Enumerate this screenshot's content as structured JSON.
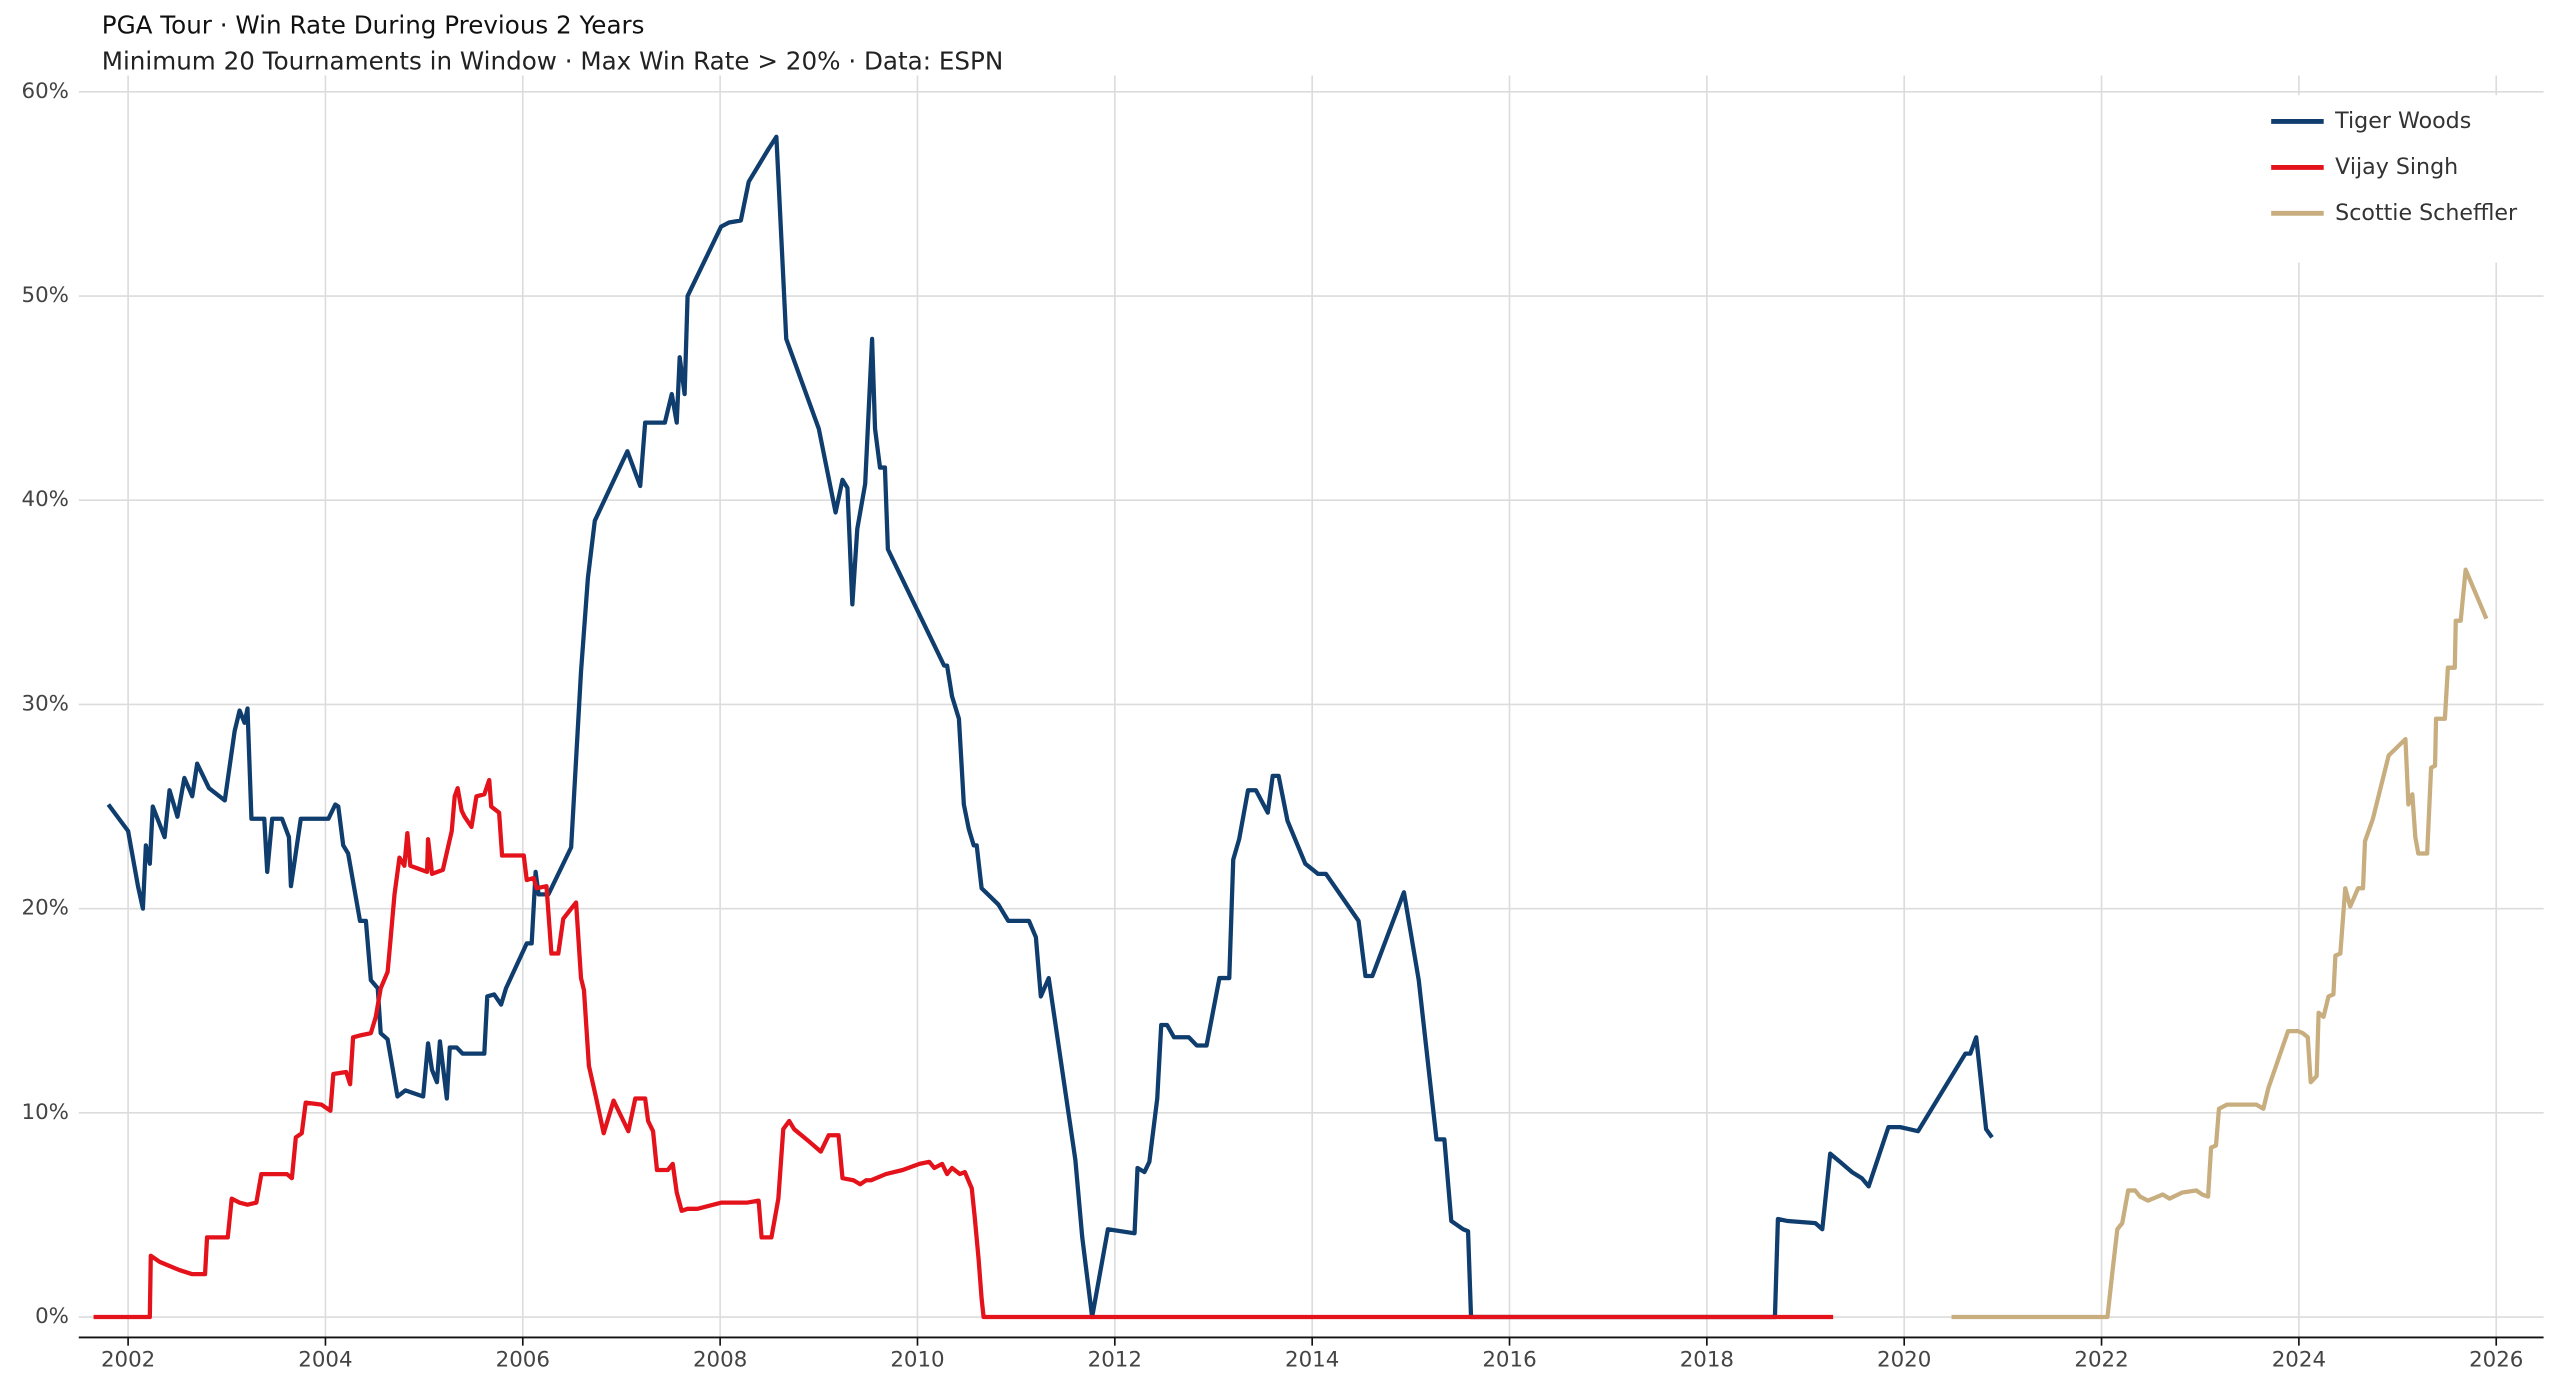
{
  "chart_data": {
    "type": "line",
    "title": "PGA Tour  ·  Win Rate During Previous 2 Years",
    "subtitle": "Minimum 20 Tournaments in Window  ·  Max Win Rate > 20%  ·  Data: ESPN",
    "xlim": [
      2001.5,
      2026.48
    ],
    "xticks": [
      2002,
      2004,
      2006,
      2008,
      2010,
      2012,
      2014,
      2016,
      2018,
      2020,
      2022,
      2024,
      2026
    ],
    "ylim": [
      -1,
      60.8
    ],
    "yticks": [
      {
        "value": 0,
        "label": "0%"
      },
      {
        "value": 10,
        "label": "10%"
      },
      {
        "value": 20,
        "label": "20%"
      },
      {
        "value": 30,
        "label": "30%"
      },
      {
        "value": 40,
        "label": "40%"
      },
      {
        "value": 50,
        "label": "50%"
      },
      {
        "value": 60,
        "label": "60%"
      }
    ],
    "grid": true,
    "legend": "top-right",
    "series": [
      {
        "name": "Tiger Woods",
        "color": "#0f3d6e",
        "x": [
          2001.8,
          2002.0,
          2002.1,
          2002.15,
          2002.18,
          2002.22,
          2002.25,
          2002.37,
          2002.42,
          2002.5,
          2002.57,
          2002.65,
          2002.7,
          2002.82,
          2002.98,
          2003.08,
          2003.13,
          2003.18,
          2003.21,
          2003.25,
          2003.38,
          2003.41,
          2003.46,
          2003.56,
          2003.63,
          2003.65,
          2003.75,
          2004.03,
          2004.1,
          2004.13,
          2004.18,
          2004.23,
          2004.35,
          2004.41,
          2004.46,
          2004.53,
          2004.56,
          2004.63,
          2004.73,
          2004.81,
          2004.99,
          2005.04,
          2005.08,
          2005.13,
          2005.16,
          2005.23,
          2005.26,
          2005.33,
          2005.39,
          2005.61,
          2005.64,
          2005.71,
          2005.78,
          2005.83,
          2006.04,
          2006.09,
          2006.13,
          2006.16,
          2006.26,
          2006.49,
          2006.59,
          2006.66,
          2006.73,
          2007.06,
          2007.19,
          2007.24,
          2007.44,
          2007.51,
          2007.56,
          2007.59,
          2007.64,
          2007.67,
          2008.01,
          2008.09,
          2008.21,
          2008.29,
          2008.39,
          2008.49,
          2008.57,
          2008.67,
          2009.0,
          2009.17,
          2009.24,
          2009.29,
          2009.34,
          2009.39,
          2009.47,
          2009.54,
          2009.57,
          2009.62,
          2009.67,
          2009.7,
          2010.27,
          2010.3,
          2010.35,
          2010.42,
          2010.47,
          2010.52,
          2010.57,
          2010.6,
          2010.65,
          2010.82,
          2010.92,
          2011.13,
          2011.2,
          2011.25,
          2011.33,
          2011.6,
          2011.67,
          2011.77,
          2011.93,
          2012.2,
          2012.23,
          2012.3,
          2012.35,
          2012.43,
          2012.47,
          2012.53,
          2012.6,
          2012.75,
          2012.83,
          2012.93,
          2013.06,
          2013.16,
          2013.2,
          2013.26,
          2013.35,
          2013.43,
          2013.55,
          2013.6,
          2013.66,
          2013.75,
          2013.93,
          2014.06,
          2014.14,
          2014.47,
          2014.54,
          2014.61,
          2014.93,
          2015.08,
          2015.26,
          2015.34,
          2015.41,
          2015.53,
          2015.58,
          2015.61,
          2018.69,
          2018.72,
          2018.82,
          2019.1,
          2019.17,
          2019.25,
          2019.35,
          2019.47,
          2019.57,
          2019.64,
          2019.84,
          2019.96,
          2020.14,
          2020.62,
          2020.67,
          2020.73,
          2020.83,
          2020.89
        ],
        "values": [
          25.1,
          23.8,
          21.1,
          20.0,
          23.1,
          22.2,
          25.0,
          23.5,
          25.8,
          24.5,
          26.4,
          25.5,
          27.1,
          25.9,
          25.3,
          28.7,
          29.7,
          29.1,
          29.8,
          24.4,
          24.4,
          21.8,
          24.4,
          24.4,
          23.5,
          21.1,
          24.4,
          24.4,
          25.1,
          25.0,
          23.1,
          22.7,
          19.4,
          19.4,
          16.5,
          16.1,
          13.9,
          13.6,
          10.8,
          11.1,
          10.8,
          13.4,
          12.1,
          11.5,
          13.5,
          10.7,
          13.2,
          13.2,
          12.9,
          12.9,
          15.7,
          15.8,
          15.3,
          16.1,
          18.3,
          18.3,
          21.8,
          20.7,
          20.7,
          23.0,
          31.6,
          36.2,
          39.0,
          42.4,
          40.7,
          43.8,
          43.8,
          45.2,
          43.8,
          47.0,
          45.2,
          50.0,
          53.4,
          53.6,
          53.7,
          55.6,
          56.4,
          57.2,
          57.8,
          47.9,
          43.5,
          39.4,
          41.0,
          40.6,
          34.9,
          38.6,
          40.8,
          47.9,
          43.5,
          41.6,
          41.6,
          37.6,
          31.9,
          31.9,
          30.4,
          29.3,
          25.1,
          23.9,
          23.1,
          23.1,
          21.0,
          20.2,
          19.4,
          19.4,
          18.6,
          15.7,
          16.6,
          7.7,
          3.9,
          0,
          4.3,
          4.1,
          7.3,
          7.1,
          7.6,
          10.7,
          14.3,
          14.3,
          13.7,
          13.7,
          13.3,
          13.3,
          16.6,
          16.6,
          22.4,
          23.4,
          25.8,
          25.8,
          24.7,
          26.5,
          26.5,
          24.3,
          22.2,
          21.7,
          21.7,
          19.4,
          16.7,
          16.7,
          20.8,
          16.5,
          8.7,
          8.7,
          4.7,
          4.3,
          4.2,
          0,
          0,
          4.8,
          4.7,
          4.6,
          4.3,
          8.0,
          7.6,
          7.1,
          6.8,
          6.4,
          9.3,
          9.3,
          9.1,
          12.9,
          12.9,
          13.7,
          9.2,
          8.8
        ]
      },
      {
        "name": "Vijay Singh",
        "color": "#e3121b",
        "x": [
          2001.65,
          2002.22,
          2002.23,
          2002.32,
          2002.42,
          2002.52,
          2002.65,
          2002.78,
          2002.8,
          2003.01,
          2003.05,
          2003.13,
          2003.21,
          2003.3,
          2003.35,
          2003.61,
          2003.66,
          2003.7,
          2003.76,
          2003.8,
          2003.96,
          2004.05,
          2004.08,
          2004.21,
          2004.25,
          2004.28,
          2004.36,
          2004.46,
          2004.51,
          2004.56,
          2004.63,
          2004.66,
          2004.7,
          2004.75,
          2004.8,
          2004.83,
          2004.86,
          2005.03,
          2005.04,
          2005.08,
          2005.19,
          2005.28,
          2005.31,
          2005.34,
          2005.38,
          2005.41,
          2005.48,
          2005.53,
          2005.61,
          2005.66,
          2005.68,
          2005.76,
          2005.79,
          2006.01,
          2006.04,
          2006.11,
          2006.14,
          2006.24,
          2006.29,
          2006.36,
          2006.41,
          2006.49,
          2006.54,
          2006.59,
          2006.62,
          2006.67,
          2006.74,
          2006.82,
          2006.92,
          2006.99,
          2007.07,
          2007.14,
          2007.24,
          2007.27,
          2007.32,
          2007.36,
          2007.47,
          2007.52,
          2007.56,
          2007.61,
          2007.67,
          2007.77,
          2008.01,
          2008.27,
          2008.39,
          2008.42,
          2008.52,
          2008.59,
          2008.64,
          2008.7,
          2008.75,
          2008.9,
          2009.02,
          2009.1,
          2009.2,
          2009.24,
          2009.35,
          2009.42,
          2009.48,
          2009.53,
          2009.68,
          2009.85,
          2010.02,
          2010.12,
          2010.17,
          2010.25,
          2010.3,
          2010.35,
          2010.43,
          2010.48,
          2010.55,
          2010.58,
          2010.62,
          2010.65,
          2010.67,
          2019.28
        ],
        "values": [
          0,
          0,
          3.0,
          2.7,
          2.5,
          2.3,
          2.1,
          2.1,
          3.9,
          3.9,
          5.8,
          5.6,
          5.5,
          5.6,
          7.0,
          7.0,
          6.8,
          8.8,
          9.0,
          10.5,
          10.4,
          10.1,
          11.9,
          12.0,
          11.4,
          13.7,
          13.8,
          13.9,
          14.7,
          16.1,
          16.9,
          18.5,
          20.7,
          22.5,
          22.1,
          23.7,
          22.1,
          21.8,
          23.4,
          21.7,
          21.9,
          23.8,
          25.5,
          25.9,
          24.8,
          24.5,
          24.0,
          25.5,
          25.6,
          26.3,
          25.0,
          24.7,
          22.6,
          22.6,
          21.4,
          21.5,
          21.0,
          21.1,
          17.8,
          17.8,
          19.5,
          20.0,
          20.3,
          16.6,
          16.0,
          12.3,
          10.8,
          9.0,
          10.6,
          9.9,
          9.1,
          10.7,
          10.7,
          9.6,
          9.1,
          7.2,
          7.2,
          7.5,
          6.1,
          5.2,
          5.3,
          5.3,
          5.6,
          5.6,
          5.7,
          3.9,
          3.9,
          5.8,
          9.2,
          9.6,
          9.2,
          8.6,
          8.1,
          8.9,
          8.9,
          6.8,
          6.7,
          6.5,
          6.7,
          6.7,
          7.0,
          7.2,
          7.5,
          7.6,
          7.3,
          7.5,
          7.0,
          7.3,
          7.0,
          7.1,
          6.3,
          4.9,
          2.8,
          0.9,
          0,
          0
        ]
      },
      {
        "name": "Scottie Scheffler",
        "color": "#c8ad7f",
        "x": [
          2020.48,
          2022.06,
          2022.11,
          2022.16,
          2022.21,
          2022.27,
          2022.34,
          2022.39,
          2022.47,
          2022.57,
          2022.62,
          2022.69,
          2022.82,
          2022.96,
          2023.02,
          2023.08,
          2023.11,
          2023.16,
          2023.19,
          2023.27,
          2023.57,
          2023.64,
          2023.69,
          2023.89,
          2023.99,
          2024.04,
          2024.09,
          2024.12,
          2024.18,
          2024.2,
          2024.25,
          2024.3,
          2024.35,
          2024.37,
          2024.42,
          2024.47,
          2024.52,
          2024.6,
          2024.65,
          2024.67,
          2024.75,
          2024.91,
          2025.08,
          2025.11,
          2025.15,
          2025.18,
          2025.21,
          2025.3,
          2025.34,
          2025.38,
          2025.39,
          2025.48,
          2025.51,
          2025.58,
          2025.59,
          2025.64,
          2025.69,
          2025.9
        ],
        "values": [
          0,
          0,
          2.2,
          4.3,
          4.6,
          6.2,
          6.2,
          5.9,
          5.7,
          5.9,
          6.0,
          5.8,
          6.1,
          6.2,
          6.0,
          5.9,
          8.3,
          8.4,
          10.2,
          10.4,
          10.4,
          10.2,
          11.2,
          14.0,
          14.0,
          13.9,
          13.7,
          11.5,
          11.8,
          14.9,
          14.7,
          15.7,
          15.8,
          17.7,
          17.8,
          21.0,
          20.1,
          21.0,
          21.0,
          23.3,
          24.4,
          27.5,
          28.3,
          25.1,
          25.6,
          23.5,
          22.7,
          22.7,
          26.9,
          27.0,
          29.3,
          29.3,
          31.8,
          31.8,
          34.1,
          34.1,
          36.6,
          34.2
        ]
      }
    ]
  }
}
